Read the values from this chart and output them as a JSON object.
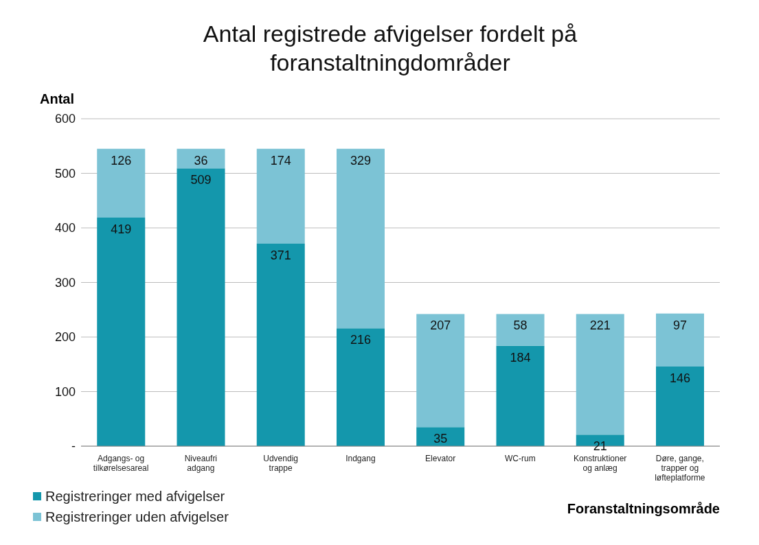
{
  "chart_data": {
    "type": "bar",
    "title": "Antal registrede afvigelser fordelt på foranstaltningdområder",
    "ylabel": "Antal",
    "xlabel": "Foranstaltningsområde",
    "categories": [
      "Adgangs- og tilkørelsesareal",
      "Niveaufri adgang",
      "Udvendig trappe",
      "Indgang",
      "Elevator",
      "WC-rum",
      "Konstruktioner og anlæg",
      "Døre, gange, trapper og løfteplatforme"
    ],
    "series": [
      {
        "name": "Registreringer med afvigelser",
        "color": "#1497ac",
        "values": [
          419,
          509,
          371,
          216,
          35,
          184,
          21,
          146
        ]
      },
      {
        "name": "Registreringer uden afvigelser",
        "color": "#7cc3d5",
        "values": [
          126,
          36,
          174,
          329,
          207,
          58,
          221,
          97
        ]
      }
    ],
    "stacked": true,
    "ylim": [
      0,
      600
    ],
    "yticks": [
      {
        "value": 0,
        "label": "-"
      },
      100,
      200,
      300,
      400,
      500,
      600
    ],
    "grid": "y",
    "legend": "bottom left",
    "data_labels": true
  }
}
